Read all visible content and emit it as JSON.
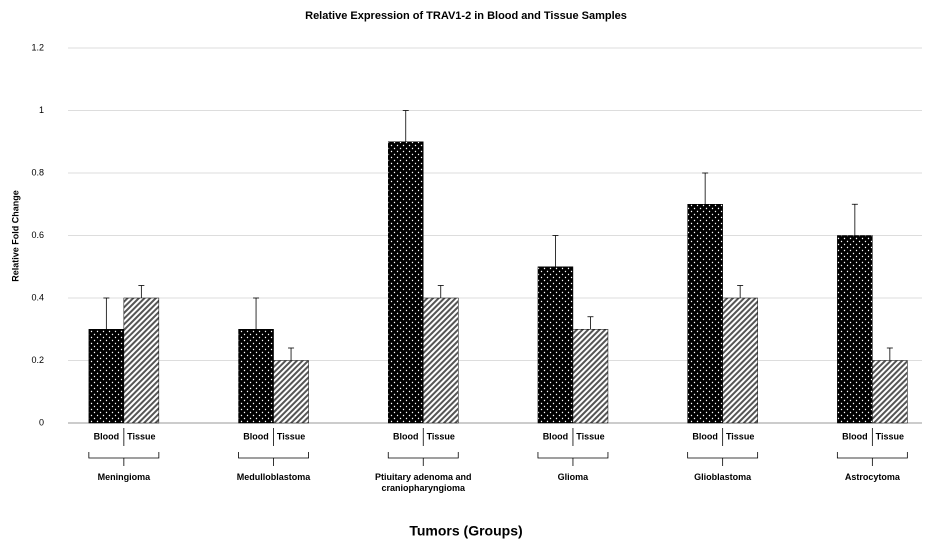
{
  "chart_data": {
    "type": "bar",
    "title": "Relative Expression of TRAV1-2 in Blood and Tissue Samples",
    "x_label": "Tumors (Groups)",
    "y_label": "Relative Fold Change",
    "categories": [
      "Meningioma",
      "Medulloblastoma",
      "Ptiuitary adenoma and craniopharyngioma",
      "Glioma",
      "Glioblastoma",
      "Astrocytoma"
    ],
    "series": [
      {
        "name": "Blood",
        "color": "#000000",
        "values": [
          0.3,
          0.3,
          0.9,
          0.5,
          0.7,
          0.6
        ],
        "errors": [
          0.1,
          0.1,
          0.1,
          0.1,
          0.1,
          0.1
        ]
      },
      {
        "name": "Tissue",
        "color": "#555555",
        "values": [
          0.4,
          0.2,
          0.4,
          0.3,
          0.4,
          0.2
        ],
        "errors": [
          0.04,
          0.04,
          0.04,
          0.04,
          0.04,
          0.04
        ]
      }
    ],
    "ylim": [
      0,
      1.2
    ],
    "yticks": [
      0,
      0.2,
      0.4,
      0.6,
      0.8,
      1,
      1.2
    ],
    "grid": true
  }
}
